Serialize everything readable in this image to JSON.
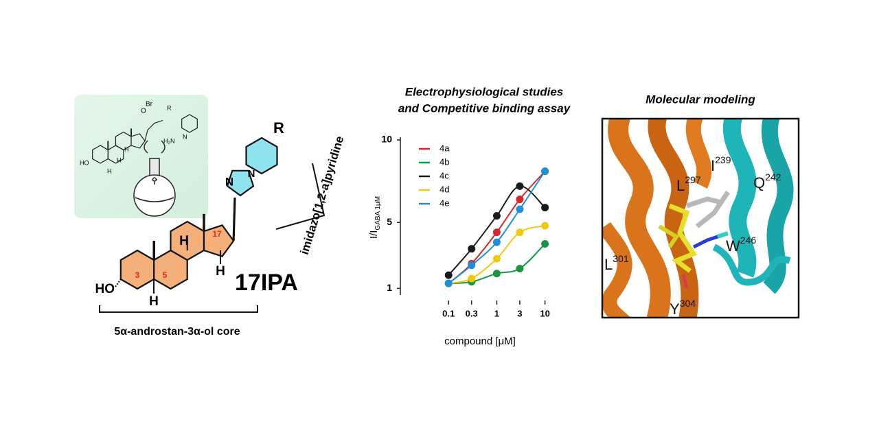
{
  "synthesis": {
    "labels": [
      "Br",
      "O",
      "R",
      "H₂N",
      "N",
      "HO",
      "H",
      "H",
      "H"
    ]
  },
  "structure": {
    "ring_numbers": [
      "3",
      "5",
      "17"
    ],
    "hydrogens": [
      "H",
      "H",
      "H"
    ],
    "hydroxyl": "HO",
    "substituent": "R",
    "nitrogens": [
      "N",
      "N"
    ],
    "name": "17IPA",
    "core_label": "5α-androstan-3α-ol core",
    "heterocycle_label": "imidazo[1,2-a]pyridine"
  },
  "chart_data": {
    "type": "line",
    "title": [
      "Electrophysiological studies",
      "and Competitive binding assay"
    ],
    "xlabel": "compound [μM]",
    "ylabel": "I/I",
    "ylabel_sub": "GABA 1μM",
    "xscale": "log",
    "x": [
      0.1,
      0.3,
      1,
      3,
      10
    ],
    "xlim": [
      0.01,
      28
    ],
    "xticks": [
      0.1,
      0.3,
      1,
      3,
      10
    ],
    "ylim": [
      0.6,
      10
    ],
    "yticks": [
      1,
      5,
      10
    ],
    "series": [
      {
        "name": "4a",
        "color": "#d62728",
        "values": [
          1.3,
          2.5,
          4.4,
          6.4,
          8.1
        ]
      },
      {
        "name": "4b",
        "color": "#1a9641",
        "values": [
          1.3,
          1.4,
          1.9,
          2.2,
          3.7
        ]
      },
      {
        "name": "4c",
        "color": "#1a1a1a",
        "values": [
          1.8,
          3.4,
          5.4,
          7.2,
          5.9
        ]
      },
      {
        "name": "4d",
        "color": "#f2c80f",
        "values": [
          1.3,
          1.6,
          2.8,
          4.4,
          4.8
        ]
      },
      {
        "name": "4e",
        "color": "#1f8fd6",
        "values": [
          1.3,
          2.4,
          3.8,
          5.8,
          8.1
        ]
      }
    ]
  },
  "modeling": {
    "title": "Molecular modeling",
    "residues": [
      {
        "letter": "I",
        "number": "239"
      },
      {
        "letter": "Q",
        "number": "242"
      },
      {
        "letter": "L",
        "number": "297"
      },
      {
        "letter": "L",
        "number": "301"
      },
      {
        "letter": "W",
        "number": "246"
      },
      {
        "letter": "Y",
        "number": "304"
      }
    ]
  }
}
